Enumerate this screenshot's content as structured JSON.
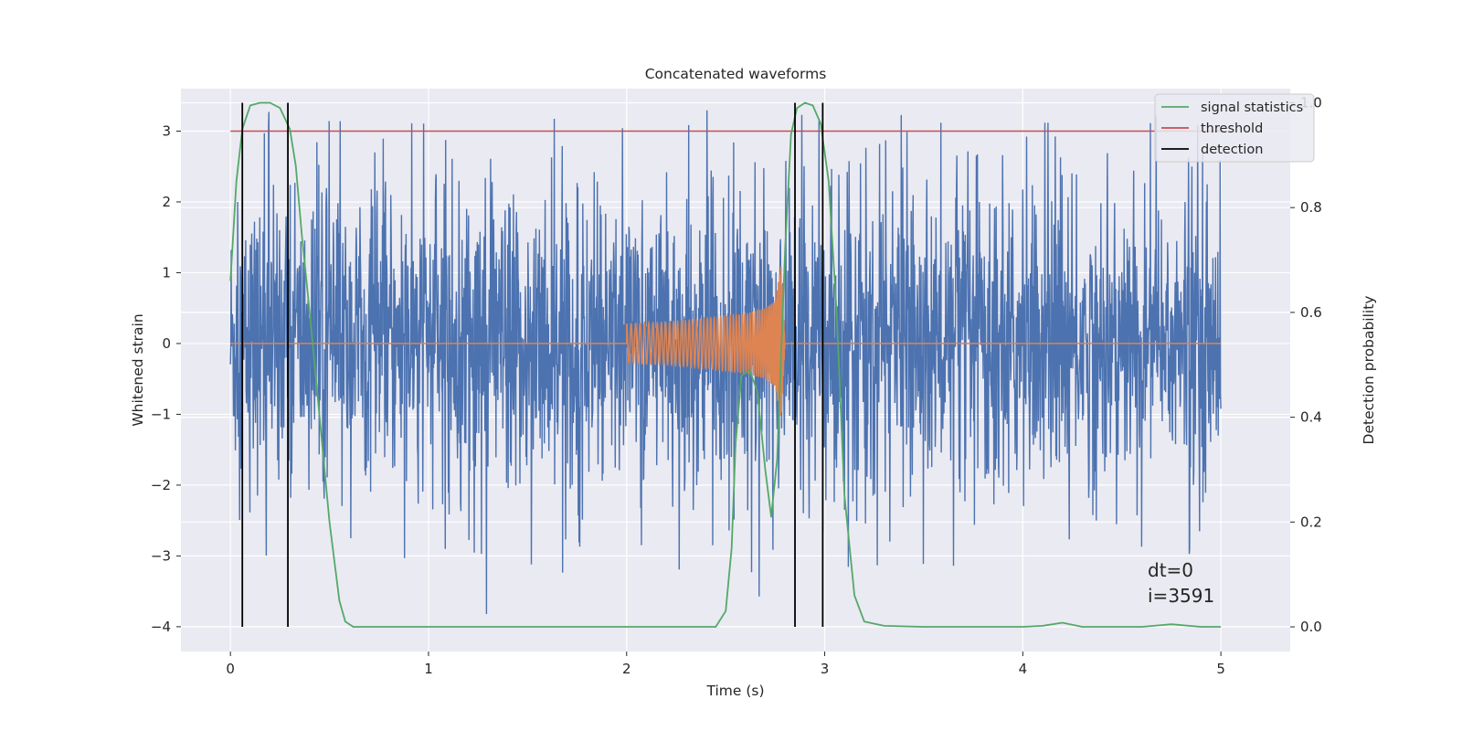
{
  "chart_data": {
    "type": "line",
    "title": "Concatenated waveforms",
    "xlabel": "Time (s)",
    "ylabel": "Whitened strain",
    "y2label": "Detection probability",
    "xlim": [
      -0.25,
      5.35
    ],
    "ylim": [
      -4.35,
      3.6
    ],
    "y2lim": [
      -0.047,
      1.027
    ],
    "xticks": [
      0,
      1,
      2,
      3,
      4,
      5
    ],
    "yticks": [
      -4,
      -3,
      -2,
      -1,
      0,
      1,
      2,
      3
    ],
    "y2ticks": [
      0.0,
      0.2,
      0.4,
      0.6,
      0.8,
      1.0
    ],
    "xtick_labels": [
      "0",
      "1",
      "2",
      "3",
      "4",
      "5"
    ],
    "ytick_labels": [
      "−4",
      "−3",
      "−2",
      "−1",
      "0",
      "1",
      "2",
      "3"
    ],
    "y2tick_labels": [
      "0.0",
      "0.2",
      "0.4",
      "0.6",
      "0.8",
      "1.0"
    ],
    "grid": true,
    "legend_position": "top-right",
    "colors": {
      "strain": "#4c72b0",
      "template": "#dd8452",
      "signal": "#55a868",
      "threshold": "#c44e52",
      "detection": "#000000",
      "background": "#eaeaf2",
      "grid": "#ffffff"
    },
    "strain": {
      "x_range": [
        0,
        5
      ],
      "approx_envelope_max": 3.35,
      "approx_envelope_min": -4.0
    },
    "template_chirp": {
      "x": [
        2.0,
        2.2,
        2.4,
        2.6,
        2.7,
        2.75,
        2.78,
        2.8
      ],
      "amplitude": [
        0.28,
        0.3,
        0.35,
        0.42,
        0.5,
        0.6,
        1.1,
        0.0
      ]
    },
    "series": [
      {
        "name": "signal statistics",
        "axis": "right",
        "x": [
          0.0,
          0.03,
          0.06,
          0.1,
          0.15,
          0.2,
          0.25,
          0.3,
          0.33,
          0.36,
          0.4,
          0.45,
          0.5,
          0.55,
          0.58,
          0.62,
          0.7,
          1.0,
          2.0,
          2.45,
          2.5,
          2.53,
          2.55,
          2.58,
          2.62,
          2.66,
          2.7,
          2.73,
          2.76,
          2.8,
          2.83,
          2.86,
          2.9,
          2.94,
          2.98,
          3.02,
          3.06,
          3.1,
          3.15,
          3.2,
          3.3,
          3.5,
          4.0,
          4.1,
          4.2,
          4.3,
          4.6,
          4.75,
          4.9,
          5.0
        ],
        "y": [
          0.66,
          0.85,
          0.95,
          0.995,
          1.0,
          1.0,
          0.99,
          0.95,
          0.88,
          0.75,
          0.6,
          0.4,
          0.2,
          0.05,
          0.01,
          0.0,
          0.0,
          0.0,
          0.0,
          0.0,
          0.03,
          0.15,
          0.35,
          0.48,
          0.49,
          0.45,
          0.3,
          0.21,
          0.32,
          0.72,
          0.94,
          0.99,
          1.0,
          0.995,
          0.96,
          0.85,
          0.6,
          0.25,
          0.06,
          0.01,
          0.002,
          0.0,
          0.0,
          0.002,
          0.008,
          0.0,
          0.0,
          0.005,
          0.0,
          0.0
        ]
      },
      {
        "name": "threshold",
        "axis": "left",
        "x": [
          0,
          5
        ],
        "y": [
          3,
          3
        ]
      },
      {
        "name": "detection",
        "axis": "left",
        "x": [
          0.06,
          0.29,
          2.85,
          2.99
        ]
      }
    ],
    "legend": [
      "signal statistics",
      "threshold",
      "detection"
    ],
    "annotations": [
      "dt=0",
      "i=3591"
    ]
  }
}
